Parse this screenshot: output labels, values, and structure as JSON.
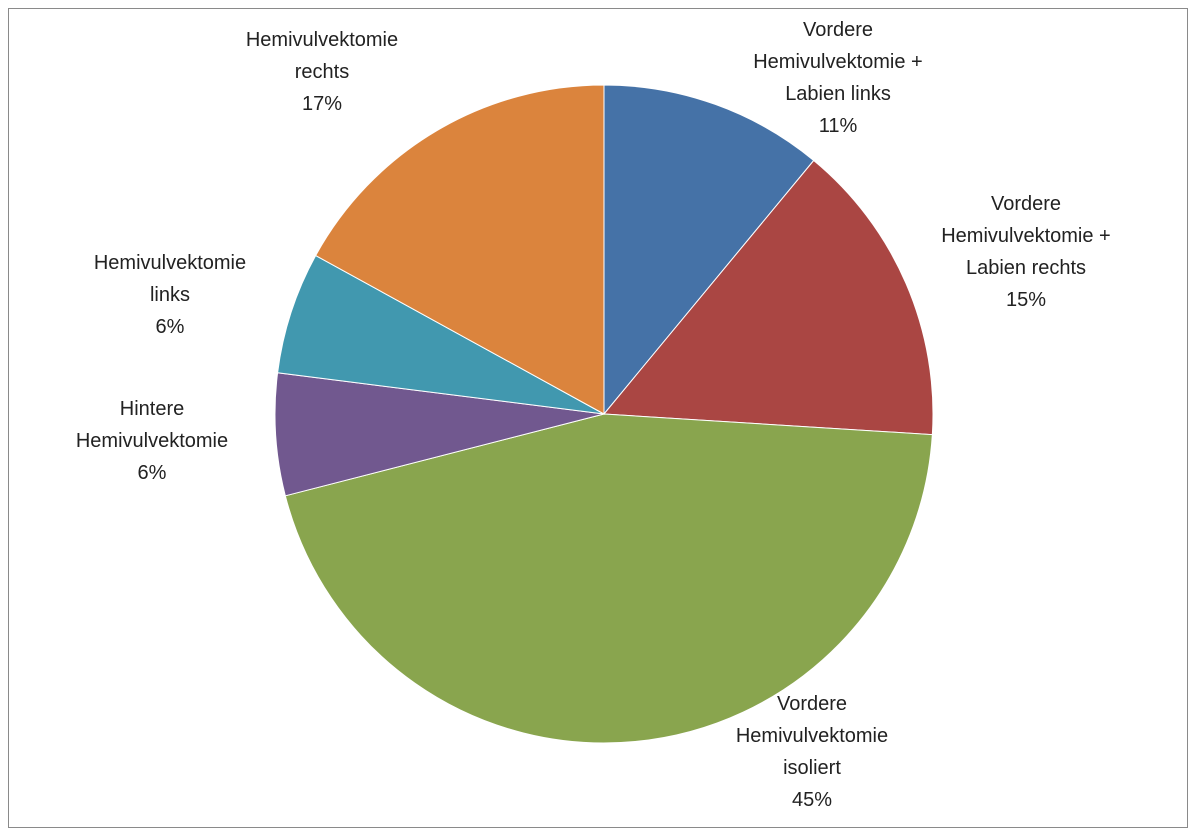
{
  "chart_data": {
    "type": "pie",
    "categories": [
      "Vordere Hemivulvektomie + Labien links",
      "Vordere Hemivulvektomie + Labien rechts",
      "Vordere Hemivulvektomie isoliert",
      "Hintere Hemivulvektomie",
      "Hemivulvektomie links",
      "Hemivulvektomie rechts"
    ],
    "values": [
      11,
      15,
      45,
      6,
      6,
      17
    ],
    "value_labels": [
      "11%",
      "15%",
      "45%",
      "6%",
      "6%",
      "17%"
    ],
    "colors": [
      "#4572a7",
      "#aa4643",
      "#89a54e",
      "#71588f",
      "#4198af",
      "#db843d"
    ]
  }
}
